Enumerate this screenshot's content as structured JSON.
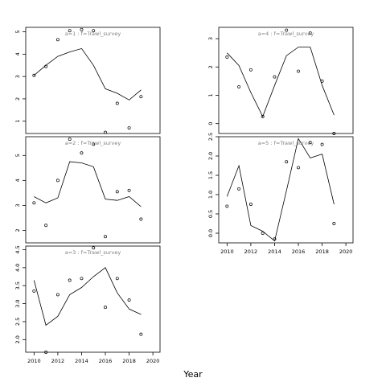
{
  "figure": {
    "xlabel": "Year"
  },
  "chart_data": [
    {
      "type": "line",
      "panel_label": "a=1 : f=Trawl_survey",
      "x": [
        2010,
        2011,
        2012,
        2013,
        2014,
        2015,
        2016,
        2017,
        2018,
        2019
      ],
      "xlim": [
        2009.3,
        2020.6
      ],
      "ylim": [
        0.45,
        5.2
      ],
      "yticks": [
        1,
        2,
        3,
        4,
        5
      ],
      "xticks": [],
      "series": [
        {
          "style": "line",
          "values": [
            3.05,
            3.5,
            3.9,
            4.1,
            4.25,
            3.5,
            2.45,
            2.25,
            1.95,
            2.4
          ]
        },
        {
          "style": "points",
          "values": [
            3.05,
            3.45,
            4.65,
            5.05,
            5.1,
            5.05,
            0.5,
            1.8,
            0.7,
            2.1
          ]
        }
      ]
    },
    {
      "type": "line",
      "panel_label": "a=4 : f=Trawl_survey",
      "x": [
        2010,
        2011,
        2012,
        2013,
        2014,
        2015,
        2016,
        2017,
        2018,
        2019
      ],
      "xlim": [
        2009.3,
        2020.6
      ],
      "ylim": [
        -0.35,
        3.4
      ],
      "yticks": [
        0,
        1,
        2,
        3
      ],
      "xticks": [],
      "series": [
        {
          "style": "line",
          "values": [
            2.5,
            2.05,
            1.1,
            0.25,
            1.35,
            2.4,
            2.7,
            2.7,
            1.35,
            0.3
          ]
        },
        {
          "style": "points",
          "values": [
            2.35,
            1.3,
            1.9,
            0.25,
            1.65,
            3.3,
            1.85,
            3.2,
            1.5,
            -0.35
          ]
        }
      ]
    },
    {
      "type": "line",
      "panel_label": "a=2 : f=Trawl_survey",
      "x": [
        2010,
        2011,
        2012,
        2013,
        2014,
        2015,
        2016,
        2017,
        2018,
        2019
      ],
      "xlim": [
        2009.3,
        2020.6
      ],
      "ylim": [
        1.5,
        5.75
      ],
      "yticks": [
        2,
        3,
        4,
        5
      ],
      "xticks": [],
      "series": [
        {
          "style": "line",
          "values": [
            3.35,
            3.1,
            3.3,
            4.75,
            4.7,
            4.55,
            3.25,
            3.2,
            3.35,
            2.95
          ]
        },
        {
          "style": "points",
          "values": [
            3.1,
            2.2,
            4.0,
            5.65,
            5.1,
            5.45,
            1.75,
            3.55,
            3.6,
            2.45
          ]
        }
      ]
    },
    {
      "type": "line",
      "panel_label": "a=5 : f=Trawl_survey",
      "x": [
        2010,
        2011,
        2012,
        2013,
        2014,
        2015,
        2016,
        2017,
        2018,
        2019
      ],
      "xlim": [
        2009.3,
        2020.6
      ],
      "ylim": [
        -0.25,
        2.5
      ],
      "yticks": [
        0.0,
        0.5,
        1.0,
        1.5,
        2.0,
        2.5
      ],
      "ytick_labels": [
        "0.0",
        "0.5",
        "1.0",
        "1.5",
        "2.0",
        "2.5"
      ],
      "xticks": [
        2010,
        2012,
        2014,
        2016,
        2018,
        2020
      ],
      "series": [
        {
          "style": "line",
          "values": [
            0.95,
            1.75,
            0.2,
            0.05,
            -0.2,
            1.1,
            2.45,
            1.95,
            2.05,
            0.75
          ]
        },
        {
          "style": "points",
          "values": [
            0.7,
            1.15,
            0.75,
            0.0,
            -0.15,
            1.85,
            1.7,
            2.35,
            2.3,
            0.25
          ]
        }
      ]
    },
    {
      "type": "line",
      "panel_label": "a=3 : f=Trawl_survey",
      "x": [
        2010,
        2011,
        2012,
        2013,
        2014,
        2015,
        2016,
        2017,
        2018,
        2019
      ],
      "xlim": [
        2009.3,
        2020.6
      ],
      "ylim": [
        1.65,
        4.6
      ],
      "yticks": [
        2.0,
        2.5,
        3.0,
        3.5,
        4.0,
        4.5
      ],
      "ytick_labels": [
        "2.0",
        "2.5",
        "3.0",
        "3.5",
        "4.0",
        "4.5"
      ],
      "xticks": [
        2010,
        2012,
        2014,
        2016,
        2018,
        2020
      ],
      "series": [
        {
          "style": "line",
          "values": [
            3.65,
            2.4,
            2.65,
            3.25,
            3.45,
            3.75,
            4.0,
            3.3,
            2.85,
            2.7
          ]
        },
        {
          "style": "points",
          "values": [
            3.35,
            1.65,
            3.25,
            3.65,
            3.7,
            4.55,
            2.9,
            3.7,
            3.1,
            2.15
          ]
        }
      ]
    }
  ]
}
